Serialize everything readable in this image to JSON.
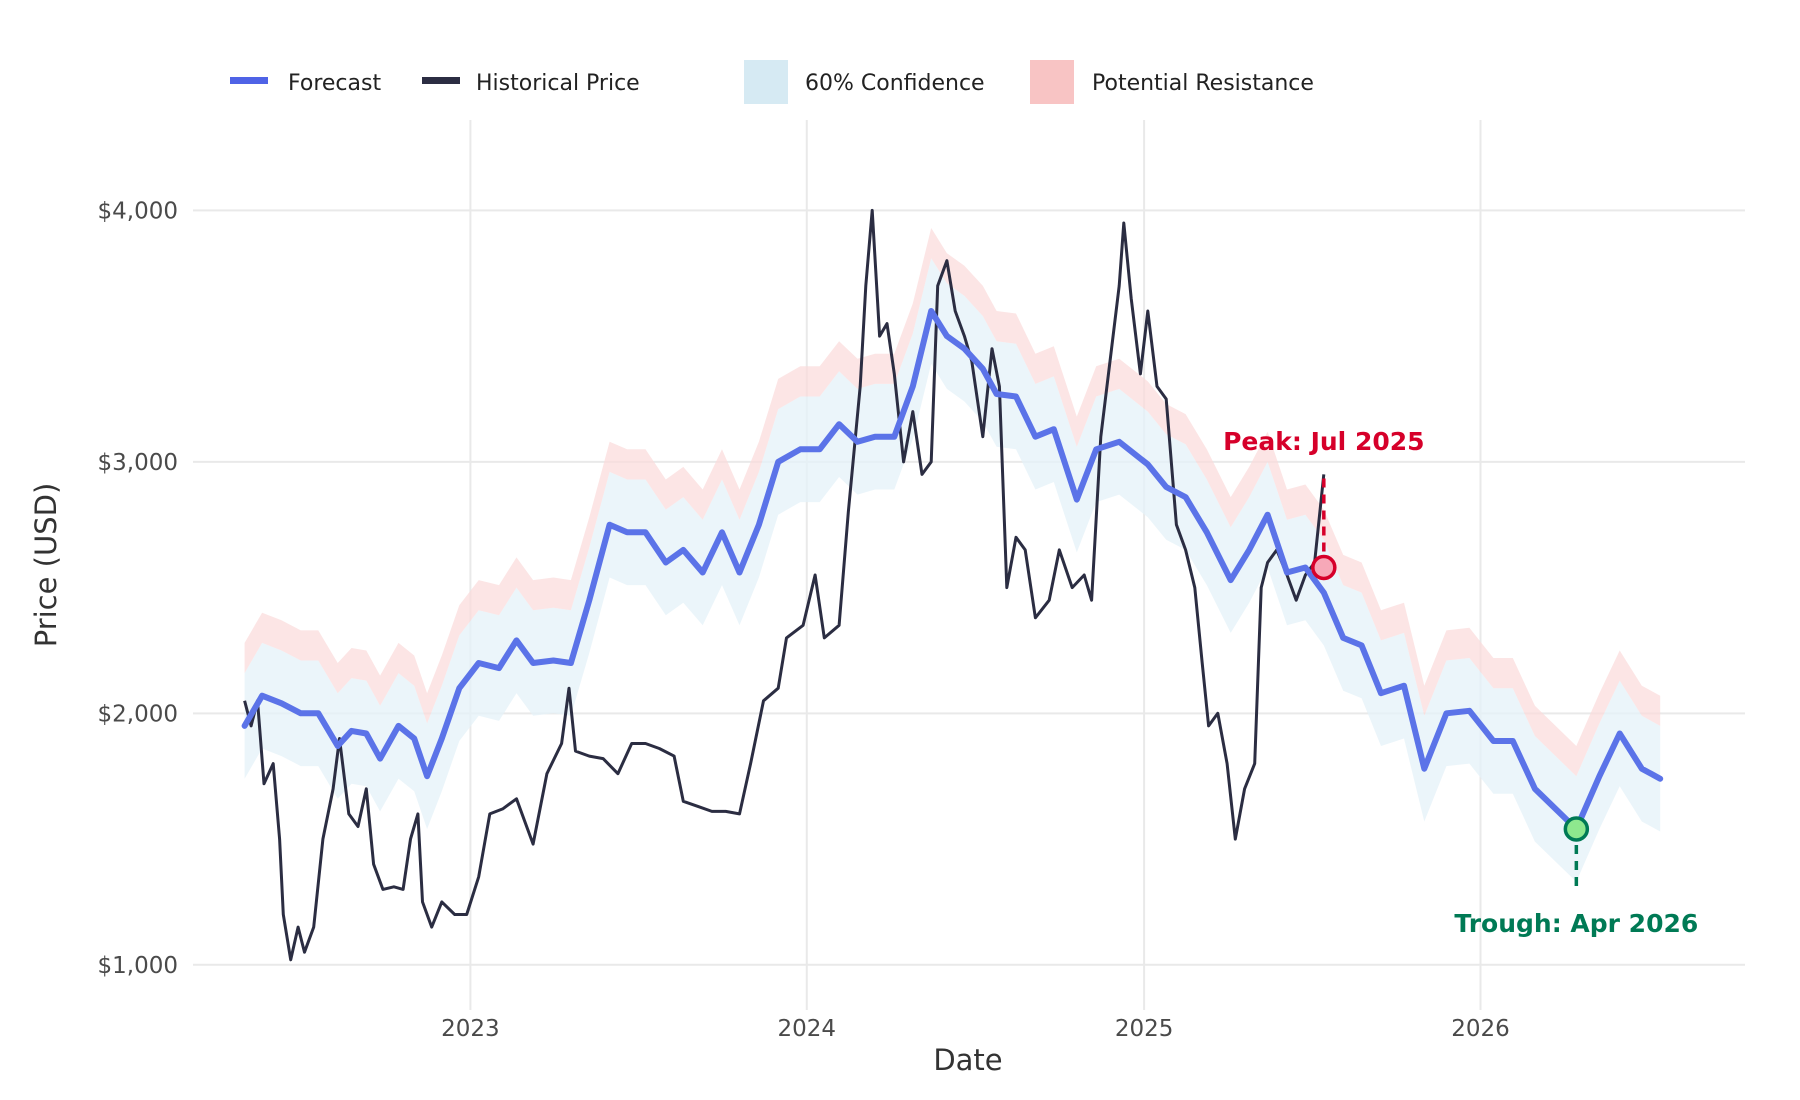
{
  "chart_data": {
    "type": "line",
    "xlabel": "Date",
    "ylabel": "Price (USD)",
    "x_tick_labels": [
      "2023",
      "2024",
      "2025",
      "2026"
    ],
    "y_tick_labels": [
      "$1,000",
      "$2,000",
      "$3,000",
      "$4,000"
    ],
    "y_ticks": [
      1000,
      2000,
      3000,
      4000
    ],
    "x_ticks": [
      "2023-01-01",
      "2024-01-01",
      "2025-01-01",
      "2026-01-01"
    ],
    "xlim": [
      "2022-03-06",
      "2026-10-15"
    ],
    "ylim": [
      860,
      4280
    ],
    "grid": true,
    "legend_position": "top",
    "legend": [
      {
        "label": "Forecast",
        "kind": "line",
        "color": "#4f63e6"
      },
      {
        "label": "Historical Price",
        "kind": "line",
        "color": "#2b2d42"
      },
      {
        "label": "60% Confidence",
        "kind": "fill",
        "color": "#d6eaf3"
      },
      {
        "label": "Potential Resistance",
        "kind": "fill",
        "color": "#f8c4c4"
      }
    ],
    "series": [
      {
        "name": "Forecast",
        "color": "#5b73e8",
        "points": [
          [
            "2022-05-01",
            1950
          ],
          [
            "2022-05-20",
            2070
          ],
          [
            "2022-06-10",
            2040
          ],
          [
            "2022-07-01",
            2000
          ],
          [
            "2022-07-20",
            2000
          ],
          [
            "2022-08-10",
            1870
          ],
          [
            "2022-08-25",
            1930
          ],
          [
            "2022-09-10",
            1920
          ],
          [
            "2022-09-25",
            1820
          ],
          [
            "2022-10-15",
            1950
          ],
          [
            "2022-11-01",
            1900
          ],
          [
            "2022-11-15",
            1750
          ],
          [
            "2022-12-01",
            1900
          ],
          [
            "2022-12-20",
            2100
          ],
          [
            "2023-01-10",
            2200
          ],
          [
            "2023-02-01",
            2180
          ],
          [
            "2023-02-20",
            2290
          ],
          [
            "2023-03-10",
            2200
          ],
          [
            "2023-04-01",
            2210
          ],
          [
            "2023-04-20",
            2200
          ],
          [
            "2023-05-10",
            2450
          ],
          [
            "2023-06-01",
            2750
          ],
          [
            "2023-06-20",
            2720
          ],
          [
            "2023-07-10",
            2720
          ],
          [
            "2023-08-01",
            2600
          ],
          [
            "2023-08-20",
            2650
          ],
          [
            "2023-09-10",
            2560
          ],
          [
            "2023-10-01",
            2720
          ],
          [
            "2023-10-20",
            2560
          ],
          [
            "2023-11-10",
            2750
          ],
          [
            "2023-12-01",
            3000
          ],
          [
            "2023-12-25",
            3050
          ],
          [
            "2024-01-15",
            3050
          ],
          [
            "2024-02-05",
            3150
          ],
          [
            "2024-02-25",
            3080
          ],
          [
            "2024-03-15",
            3100
          ],
          [
            "2024-04-05",
            3100
          ],
          [
            "2024-04-25",
            3300
          ],
          [
            "2024-05-15",
            3600
          ],
          [
            "2024-06-01",
            3500
          ],
          [
            "2024-06-20",
            3450
          ],
          [
            "2024-07-10",
            3370
          ],
          [
            "2024-07-25",
            3270
          ],
          [
            "2024-08-15",
            3260
          ],
          [
            "2024-09-05",
            3100
          ],
          [
            "2024-09-25",
            3130
          ],
          [
            "2024-10-20",
            2850
          ],
          [
            "2024-11-10",
            3050
          ],
          [
            "2024-12-05",
            3080
          ],
          [
            "2025-01-05",
            2990
          ],
          [
            "2025-01-25",
            2900
          ],
          [
            "2025-02-15",
            2860
          ],
          [
            "2025-03-10",
            2720
          ],
          [
            "2025-04-05",
            2530
          ],
          [
            "2025-04-25",
            2650
          ],
          [
            "2025-05-15",
            2790
          ],
          [
            "2025-06-05",
            2560
          ],
          [
            "2025-06-25",
            2580
          ],
          [
            "2025-07-15",
            2480
          ],
          [
            "2025-08-05",
            2300
          ],
          [
            "2025-08-25",
            2270
          ],
          [
            "2025-09-15",
            2080
          ],
          [
            "2025-10-10",
            2110
          ],
          [
            "2025-11-01",
            1780
          ],
          [
            "2025-11-25",
            2000
          ],
          [
            "2025-12-20",
            2010
          ],
          [
            "2026-01-15",
            1890
          ],
          [
            "2026-02-05",
            1890
          ],
          [
            "2026-03-01",
            1700
          ],
          [
            "2026-04-15",
            1540
          ],
          [
            "2026-05-10",
            1750
          ],
          [
            "2026-06-01",
            1920
          ],
          [
            "2026-06-25",
            1780
          ],
          [
            "2026-07-15",
            1740
          ]
        ]
      },
      {
        "name": "Historical Price",
        "color": "#2b2d42",
        "points": [
          [
            "2022-05-01",
            2050
          ],
          [
            "2022-05-08",
            1950
          ],
          [
            "2022-05-15",
            2050
          ],
          [
            "2022-05-22",
            1720
          ],
          [
            "2022-06-01",
            1800
          ],
          [
            "2022-06-08",
            1500
          ],
          [
            "2022-06-12",
            1200
          ],
          [
            "2022-06-20",
            1020
          ],
          [
            "2022-06-28",
            1150
          ],
          [
            "2022-07-05",
            1050
          ],
          [
            "2022-07-15",
            1150
          ],
          [
            "2022-07-25",
            1500
          ],
          [
            "2022-08-05",
            1700
          ],
          [
            "2022-08-12",
            1900
          ],
          [
            "2022-08-22",
            1600
          ],
          [
            "2022-09-01",
            1550
          ],
          [
            "2022-09-10",
            1700
          ],
          [
            "2022-09-18",
            1400
          ],
          [
            "2022-09-28",
            1300
          ],
          [
            "2022-10-10",
            1310
          ],
          [
            "2022-10-20",
            1300
          ],
          [
            "2022-10-28",
            1500
          ],
          [
            "2022-11-05",
            1600
          ],
          [
            "2022-11-10",
            1250
          ],
          [
            "2022-11-20",
            1150
          ],
          [
            "2022-12-01",
            1250
          ],
          [
            "2022-12-15",
            1200
          ],
          [
            "2022-12-28",
            1200
          ],
          [
            "2023-01-10",
            1350
          ],
          [
            "2023-01-22",
            1600
          ],
          [
            "2023-02-05",
            1620
          ],
          [
            "2023-02-20",
            1660
          ],
          [
            "2023-03-10",
            1480
          ],
          [
            "2023-03-25",
            1760
          ],
          [
            "2023-04-10",
            1880
          ],
          [
            "2023-04-18",
            2100
          ],
          [
            "2023-04-25",
            1850
          ],
          [
            "2023-05-10",
            1830
          ],
          [
            "2023-05-25",
            1820
          ],
          [
            "2023-06-10",
            1760
          ],
          [
            "2023-06-25",
            1880
          ],
          [
            "2023-07-10",
            1880
          ],
          [
            "2023-07-25",
            1860
          ],
          [
            "2023-08-10",
            1830
          ],
          [
            "2023-08-20",
            1650
          ],
          [
            "2023-09-05",
            1630
          ],
          [
            "2023-09-20",
            1610
          ],
          [
            "2023-10-05",
            1610
          ],
          [
            "2023-10-20",
            1600
          ],
          [
            "2023-11-01",
            1800
          ],
          [
            "2023-11-15",
            2050
          ],
          [
            "2023-12-01",
            2100
          ],
          [
            "2023-12-10",
            2300
          ],
          [
            "2023-12-28",
            2350
          ],
          [
            "2024-01-10",
            2550
          ],
          [
            "2024-01-20",
            2300
          ],
          [
            "2024-02-05",
            2350
          ],
          [
            "2024-02-15",
            2800
          ],
          [
            "2024-02-28",
            3300
          ],
          [
            "2024-03-05",
            3700
          ],
          [
            "2024-03-12",
            4000
          ],
          [
            "2024-03-20",
            3500
          ],
          [
            "2024-03-28",
            3550
          ],
          [
            "2024-04-05",
            3350
          ],
          [
            "2024-04-15",
            3000
          ],
          [
            "2024-04-25",
            3200
          ],
          [
            "2024-05-05",
            2950
          ],
          [
            "2024-05-15",
            3000
          ],
          [
            "2024-05-22",
            3700
          ],
          [
            "2024-06-01",
            3800
          ],
          [
            "2024-06-10",
            3600
          ],
          [
            "2024-06-20",
            3500
          ],
          [
            "2024-06-28",
            3400
          ],
          [
            "2024-07-10",
            3100
          ],
          [
            "2024-07-20",
            3450
          ],
          [
            "2024-07-28",
            3300
          ],
          [
            "2024-08-05",
            2500
          ],
          [
            "2024-08-15",
            2700
          ],
          [
            "2024-08-25",
            2650
          ],
          [
            "2024-09-05",
            2380
          ],
          [
            "2024-09-20",
            2450
          ],
          [
            "2024-10-01",
            2650
          ],
          [
            "2024-10-15",
            2500
          ],
          [
            "2024-10-28",
            2550
          ],
          [
            "2024-11-05",
            2450
          ],
          [
            "2024-11-15",
            3100
          ],
          [
            "2024-11-25",
            3400
          ],
          [
            "2024-12-05",
            3700
          ],
          [
            "2024-12-10",
            3950
          ],
          [
            "2024-12-18",
            3650
          ],
          [
            "2024-12-28",
            3350
          ],
          [
            "2025-01-05",
            3600
          ],
          [
            "2025-01-15",
            3300
          ],
          [
            "2025-01-25",
            3250
          ],
          [
            "2025-02-05",
            2750
          ],
          [
            "2025-02-15",
            2650
          ],
          [
            "2025-02-25",
            2500
          ],
          [
            "2025-03-05",
            2200
          ],
          [
            "2025-03-12",
            1950
          ],
          [
            "2025-03-22",
            2000
          ],
          [
            "2025-04-01",
            1800
          ],
          [
            "2025-04-10",
            1500
          ],
          [
            "2025-04-20",
            1700
          ],
          [
            "2025-05-01",
            1800
          ],
          [
            "2025-05-08",
            2500
          ],
          [
            "2025-05-15",
            2600
          ],
          [
            "2025-05-25",
            2650
          ],
          [
            "2025-06-05",
            2550
          ],
          [
            "2025-06-15",
            2450
          ],
          [
            "2025-06-25",
            2550
          ],
          [
            "2025-07-05",
            2600
          ],
          [
            "2025-07-15",
            2950
          ]
        ]
      }
    ],
    "confidence_band": {
      "label": "60% Confidence",
      "lower_offset": -210,
      "upper_offset": 210
    },
    "resistance_band": {
      "label": "Potential Resistance",
      "lower_offset": 210,
      "upper_offset": 330
    },
    "annotations": [
      {
        "text": "Peak: Jul 2025",
        "x": "2025-07-15",
        "y": 2580,
        "line_to": 2960,
        "color": "#d6002a",
        "marker_fill": "#f7a8b8"
      },
      {
        "text": "Trough: Apr 2026",
        "x": "2026-04-15",
        "y": 1540,
        "line_to": 1290,
        "color": "#007a55",
        "marker_fill": "#8ee88e"
      }
    ]
  }
}
